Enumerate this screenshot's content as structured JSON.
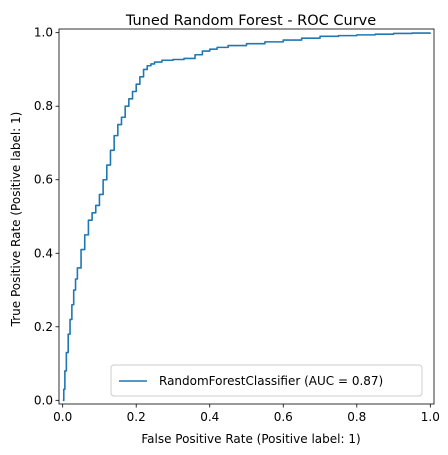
{
  "chart_data": {
    "type": "line",
    "title": "Tuned Random Forest - ROC Curve",
    "xlabel": "False Positive Rate (Positive label: 1)",
    "ylabel": "True Positive Rate (Positive label: 1)",
    "xlim": [
      -0.01,
      1.01
    ],
    "ylim": [
      -0.01,
      1.01
    ],
    "xticks": [
      0.0,
      0.2,
      0.4,
      0.6,
      0.8,
      1.0
    ],
    "yticks": [
      0.0,
      0.2,
      0.4,
      0.6,
      0.8,
      1.0
    ],
    "xtick_labels": [
      "0.0",
      "0.2",
      "0.4",
      "0.6",
      "0.8",
      "1.0"
    ],
    "ytick_labels": [
      "0.0",
      "0.2",
      "0.4",
      "0.6",
      "0.8",
      "1.0"
    ],
    "grid": false,
    "legend_position": "lower-right",
    "series": [
      {
        "name": "RandomForestClassifier (AUC = 0.87)",
        "color": "#1f77b4",
        "x": [
          0.0,
          0.003,
          0.006,
          0.01,
          0.015,
          0.02,
          0.025,
          0.03,
          0.035,
          0.04,
          0.05,
          0.06,
          0.07,
          0.08,
          0.09,
          0.1,
          0.11,
          0.12,
          0.13,
          0.14,
          0.15,
          0.16,
          0.17,
          0.18,
          0.19,
          0.2,
          0.21,
          0.22,
          0.23,
          0.24,
          0.25,
          0.27,
          0.3,
          0.33,
          0.36,
          0.38,
          0.4,
          0.42,
          0.45,
          0.5,
          0.55,
          0.6,
          0.65,
          0.7,
          0.75,
          0.8,
          0.85,
          0.9,
          0.95,
          1.0
        ],
        "y": [
          0.0,
          0.03,
          0.08,
          0.13,
          0.18,
          0.22,
          0.26,
          0.3,
          0.33,
          0.36,
          0.41,
          0.45,
          0.49,
          0.51,
          0.53,
          0.56,
          0.6,
          0.64,
          0.68,
          0.72,
          0.75,
          0.77,
          0.8,
          0.82,
          0.84,
          0.86,
          0.88,
          0.9,
          0.91,
          0.915,
          0.92,
          0.925,
          0.927,
          0.93,
          0.94,
          0.95,
          0.955,
          0.96,
          0.965,
          0.97,
          0.975,
          0.98,
          0.985,
          0.99,
          0.992,
          0.994,
          0.996,
          0.998,
          0.999,
          1.0
        ]
      }
    ]
  }
}
